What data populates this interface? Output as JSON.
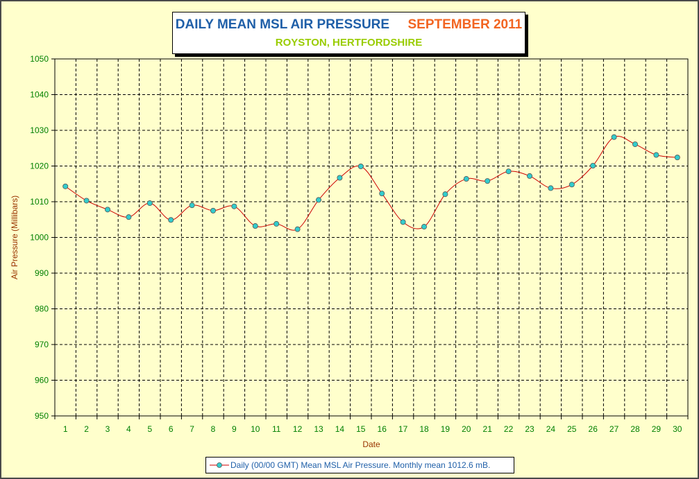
{
  "chart_data": {
    "type": "line",
    "title": "DAILY MEAN MSL AIR PRESSURE",
    "title_date": "SEPTEMBER 2011",
    "subtitle": "ROYSTON, HERTFORDSHIRE",
    "xlabel": "Date",
    "ylabel": "Air Pressure (Millibars)",
    "ylim": [
      950,
      1050
    ],
    "yticks": [
      950,
      960,
      970,
      980,
      990,
      1000,
      1010,
      1020,
      1030,
      1040,
      1050
    ],
    "categories": [
      "1",
      "2",
      "3",
      "4",
      "5",
      "6",
      "7",
      "8",
      "9",
      "10",
      "11",
      "12",
      "13",
      "14",
      "15",
      "16",
      "17",
      "18",
      "19",
      "20",
      "21",
      "22",
      "23",
      "24",
      "25",
      "26",
      "27",
      "28",
      "29",
      "30"
    ],
    "grid": true,
    "legend_position": "bottom",
    "series": [
      {
        "name": "Daily (00/00 GMT) Mean MSL Air Pressure. Monthly mean 1012.6 mB.",
        "values": [
          1014.3,
          1010.3,
          1007.8,
          1005.7,
          1009.6,
          1004.9,
          1009.0,
          1007.5,
          1008.7,
          1003.2,
          1003.8,
          1002.3,
          1010.5,
          1016.7,
          1019.9,
          1012.3,
          1004.3,
          1003.0,
          1012.1,
          1016.4,
          1015.8,
          1018.5,
          1017.2,
          1013.8,
          1014.8,
          1020.1,
          1028.1,
          1026.1,
          1023.1,
          1022.4
        ]
      }
    ]
  },
  "colors": {
    "background": "#ffffcc",
    "title": "#1f5fa8",
    "title_date": "#f26522",
    "subtitle": "#99cc00",
    "axis_text": "#008000",
    "axis_label": "#993300",
    "line": "#cc0000",
    "marker_fill": "#33cccc",
    "grid": "#000000"
  }
}
